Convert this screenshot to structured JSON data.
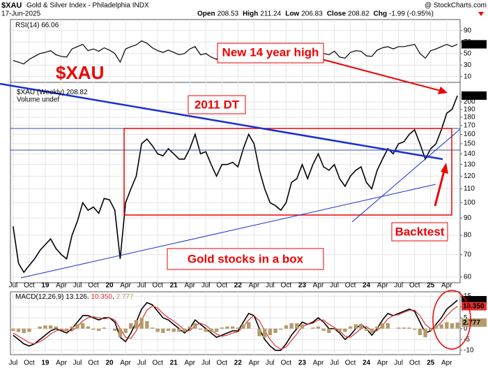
{
  "header": {
    "symbol": "$XAU",
    "name": "Gold & Silver Index - Philadelphia INDX",
    "date": "17-Jun-2025",
    "source": "@ StockCharts.com",
    "quote": [
      {
        "label": "Open",
        "value": 208.53
      },
      {
        "label": "High",
        "value": 211.24
      },
      {
        "label": "Low",
        "value": 206.83
      },
      {
        "label": "Close",
        "value": 208.82
      },
      {
        "label": "Chg",
        "value": "-1.99 (-0.95%)"
      }
    ]
  },
  "chart_data": [
    {
      "type": "line",
      "log_scale": true,
      "grid": true,
      "categories": [
        "Jul",
        null,
        null,
        "Oct",
        null,
        null,
        "19",
        null,
        null,
        "Apr",
        null,
        null,
        "Jul",
        null,
        null,
        "Oct",
        null,
        null,
        "20",
        null,
        null,
        "Apr",
        null,
        null,
        "Jul",
        null,
        null,
        "Oct",
        null,
        null,
        "21",
        null,
        null,
        "Apr",
        null,
        null,
        "Jul",
        null,
        null,
        "Oct",
        null,
        null,
        "22",
        null,
        null,
        "Apr",
        null,
        null,
        "Jul",
        null,
        null,
        "Oct",
        null,
        null,
        "23",
        null,
        null,
        "Apr",
        null,
        null,
        "Jul",
        null,
        null,
        "Oct",
        null,
        null,
        "24",
        null,
        null,
        "Apr",
        null,
        null,
        "Jul",
        null,
        null,
        "Oct",
        null,
        null,
        "25",
        null,
        null,
        "Apr",
        null,
        null
      ],
      "series": [
        {
          "name": "$XAU (Weekly)",
          "color": "#000000",
          "values": [
            85,
            66,
            62,
            65,
            68,
            72,
            75,
            78,
            73,
            70,
            68,
            80,
            88,
            100,
            95,
            97,
            93,
            103,
            102,
            95,
            68,
            100,
            110,
            120,
            150,
            155,
            148,
            140,
            138,
            145,
            140,
            135,
            135,
            145,
            160,
            140,
            142,
            130,
            120,
            130,
            130,
            132,
            128,
            145,
            160,
            150,
            125,
            110,
            100,
            98,
            95,
            100,
            115,
            118,
            130,
            118,
            130,
            140,
            128,
            125,
            130,
            118,
            112,
            120,
            125,
            128,
            115,
            110,
            125,
            135,
            145,
            140,
            150,
            152,
            160,
            165,
            150,
            135,
            145,
            150,
            165,
            185,
            190,
            208.82
          ]
        }
      ],
      "volume_note": "Volume undef",
      "ylim": [
        57.7,
        228.7
      ],
      "yticks": [
        60,
        70,
        80,
        90,
        100,
        110,
        120,
        130,
        140,
        150,
        160,
        170,
        180,
        190,
        200
      ],
      "annotations": [
        "$XAU",
        "2011 DT",
        "New 14 year high",
        "Gold stocks in a box",
        "Backtest"
      ]
    },
    {
      "type": "line",
      "grid": true,
      "series": [
        {
          "name": "RSI(14)",
          "color": "#000000",
          "values": [
            38,
            35,
            32,
            40,
            45,
            50,
            52,
            55,
            48,
            45,
            44,
            58,
            62,
            66,
            55,
            58,
            54,
            60,
            56,
            50,
            35,
            58,
            62,
            65,
            72,
            68,
            60,
            55,
            52,
            56,
            52,
            48,
            50,
            58,
            62,
            48,
            50,
            44,
            40,
            52,
            50,
            52,
            50,
            60,
            64,
            55,
            42,
            38,
            36,
            38,
            40,
            48,
            56,
            58,
            60,
            50,
            56,
            60,
            50,
            48,
            54,
            44,
            42,
            52,
            55,
            54,
            46,
            45,
            56,
            60,
            62,
            58,
            62,
            62,
            64,
            66,
            50,
            42,
            55,
            58,
            62,
            66,
            62,
            66.06
          ]
        }
      ],
      "ylim": [
        0,
        109
      ],
      "yticks": [
        10,
        30,
        50,
        70,
        90
      ]
    },
    {
      "type": "line",
      "grid": true,
      "categories": [
        "Jul",
        null,
        null,
        "Oct",
        null,
        null,
        "19",
        null,
        null,
        "Apr",
        null,
        null,
        "Jul",
        null,
        null,
        "Oct",
        null,
        null,
        "20",
        null,
        null,
        "Apr",
        null,
        null,
        "Jul",
        null,
        null,
        "Oct",
        null,
        null,
        "21",
        null,
        null,
        "Apr",
        null,
        null,
        "Jul",
        null,
        null,
        "Oct",
        null,
        null,
        "22",
        null,
        null,
        "Apr",
        null,
        null,
        "Jul",
        null,
        null,
        "Oct",
        null,
        null,
        "23",
        null,
        null,
        "Apr",
        null,
        null,
        "Jul",
        null,
        null,
        "Oct",
        null,
        null,
        "24",
        null,
        null,
        "Apr",
        null,
        null,
        "Jul",
        null,
        null,
        "Oct",
        null,
        null,
        "25",
        null,
        null,
        "Apr",
        null,
        null
      ],
      "series": [
        {
          "name": "MACD(12,26,9)",
          "color": "#000000",
          "values": [
            -3,
            -5,
            -7,
            -8,
            -7,
            -5,
            -3,
            -1,
            0,
            -1,
            -2,
            0,
            3,
            6,
            6,
            5,
            4,
            5,
            5,
            3,
            -4,
            -6,
            -2,
            3,
            9,
            12,
            11,
            8,
            5,
            4,
            2,
            0,
            -2,
            0,
            4,
            2,
            0,
            -2,
            -4,
            -3,
            -2,
            -1,
            -1,
            3,
            7,
            6,
            0,
            -5,
            -8,
            -10,
            -10,
            -7,
            -3,
            0,
            3,
            2,
            3,
            5,
            3,
            0,
            0,
            -2,
            -5,
            -3,
            0,
            2,
            0,
            -3,
            0,
            4,
            7,
            6,
            7,
            8,
            9,
            8,
            3,
            -2,
            -1,
            2,
            5,
            9,
            11,
            13.126
          ]
        },
        {
          "color": "#e03030",
          "values": [
            -2,
            -3.5,
            -5,
            -6.5,
            -7,
            -6,
            -4.5,
            -2.5,
            -1,
            -0.5,
            -1,
            -1,
            1,
            3.5,
            5,
            5.5,
            5,
            4.5,
            5,
            4,
            0,
            -4,
            -4.5,
            -1,
            4,
            8.5,
            10.5,
            9.5,
            7,
            5,
            3.5,
            1.5,
            -0.5,
            -1,
            1.5,
            2.5,
            1.5,
            -0.5,
            -2.5,
            -3.5,
            -3,
            -2,
            -1.5,
            1,
            4,
            6,
            3.5,
            -1,
            -5,
            -8,
            -9.5,
            -8.5,
            -5.5,
            -2.5,
            1,
            2,
            2.5,
            4,
            4,
            2,
            0.5,
            -1,
            -3.5,
            -4,
            -2,
            0,
            1,
            -1,
            -1,
            1.5,
            4.5,
            6,
            6.5,
            7.5,
            8.5,
            8.5,
            6,
            2,
            0,
            0.5,
            3,
            6,
            8.5,
            10.35
          ]
        },
        {
          "color": "#b59a6a",
          "type": "bar",
          "values": [
            -1,
            -1.5,
            -2,
            -1.5,
            0,
            1,
            1.5,
            1.5,
            1,
            -0.5,
            -1,
            1,
            2,
            2.5,
            1,
            -0.5,
            -1,
            0.5,
            0,
            -1,
            -4,
            -2,
            2.5,
            4,
            5,
            3.5,
            0.5,
            -1.5,
            -2,
            -1,
            -1.5,
            -1.5,
            -1.5,
            1,
            2.5,
            -0.5,
            -1.5,
            -1.5,
            -1.5,
            0.5,
            1,
            1,
            0.5,
            2,
            3,
            0,
            -3.5,
            -4,
            -3,
            -2,
            -0.5,
            1.5,
            2.5,
            2.5,
            2,
            0,
            0.5,
            1,
            -1,
            -2,
            -0.5,
            -1,
            -1.5,
            1,
            2,
            2,
            -1,
            -2,
            1,
            2.5,
            2.5,
            0,
            0.5,
            0.5,
            0.5,
            -0.5,
            -3,
            -4,
            -1,
            1.5,
            2,
            3,
            2.5,
            2.777
          ]
        }
      ],
      "readout": [
        {
          "value": 13.126,
          "label": "13.126"
        },
        {
          "value": 10.35,
          "label": "10.350"
        },
        {
          "value": 2.777,
          "label": "2.777"
        }
      ],
      "ylim": [
        -12,
        17
      ],
      "yticks": [
        -10,
        -5,
        0,
        5,
        10,
        15
      ]
    }
  ]
}
